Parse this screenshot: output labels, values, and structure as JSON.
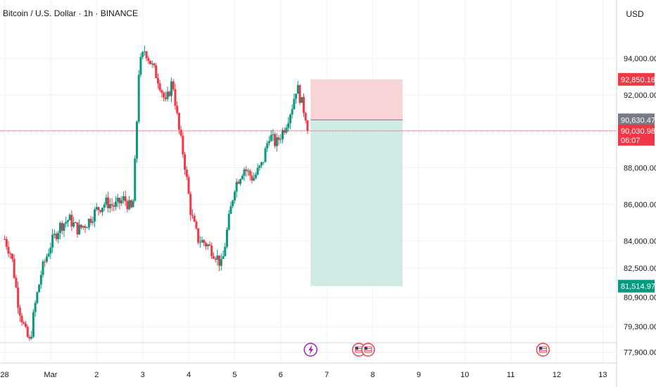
{
  "header": {
    "title": "Bitcoin / U.S. Dollar · 1h · BINANCE",
    "currency": "USD"
  },
  "colors": {
    "up": "#089981",
    "down": "#f23645",
    "grid": "#eef0f3",
    "axis_text": "#131722",
    "risk_zone": "#f9d4d7",
    "reward_zone": "#d0ebe5",
    "current_price_line": "#f23645",
    "entry_badge": "#787b86",
    "stop_badge": "#f23645",
    "target_badge": "#089981",
    "event_us": "#e0464e",
    "event_flash": "#9c27b0"
  },
  "chart_data": {
    "type": "candlestick",
    "interval": "1h",
    "x_tick_labels": [
      "28",
      "Mar",
      "2",
      "3",
      "4",
      "5",
      "6",
      "7",
      "8",
      "9",
      "10",
      "11",
      "12",
      "13"
    ],
    "y_tick_labels": [
      "94,000.00",
      "92,000.00",
      "88,000.00",
      "86,000.00",
      "84,000.00",
      "82,500.00",
      "80,900.00",
      "79,300.00",
      "77,900.00"
    ],
    "y_ticks": [
      94000,
      92000,
      88000,
      86000,
      84000,
      82500,
      80900,
      79300,
      77900
    ],
    "ylim": [
      77300,
      97200
    ],
    "xlim": [
      -0.1,
      13.3
    ],
    "price_badges": [
      {
        "label": "92,850.16",
        "value": 92850.16,
        "role": "stop"
      },
      {
        "label": "90,630.47",
        "value": 90630.47,
        "role": "entry"
      },
      {
        "label": "90,030.98",
        "value": 90030.98,
        "role": "last",
        "countdown": "06:07"
      },
      {
        "label": "81,514.97",
        "value": 81514.97,
        "role": "target"
      }
    ],
    "position_tool": {
      "type": "short",
      "x_start": 6.65,
      "x_end": 8.65,
      "entry": 90630.47,
      "stop": 92850.16,
      "target": 81514.97
    },
    "price_path": [
      {
        "x": 0.0,
        "y": 84100
      },
      {
        "x": 0.15,
        "y": 83200
      },
      {
        "x": 0.3,
        "y": 80500
      },
      {
        "x": 0.45,
        "y": 79000
      },
      {
        "x": 0.55,
        "y": 78400
      },
      {
        "x": 0.65,
        "y": 80300
      },
      {
        "x": 0.8,
        "y": 82300
      },
      {
        "x": 1.0,
        "y": 83800
      },
      {
        "x": 1.2,
        "y": 84800
      },
      {
        "x": 1.4,
        "y": 85200
      },
      {
        "x": 1.6,
        "y": 84600
      },
      {
        "x": 1.8,
        "y": 85000
      },
      {
        "x": 2.0,
        "y": 85700
      },
      {
        "x": 2.2,
        "y": 86100
      },
      {
        "x": 2.4,
        "y": 85900
      },
      {
        "x": 2.6,
        "y": 86300
      },
      {
        "x": 2.78,
        "y": 85600
      },
      {
        "x": 2.85,
        "y": 89000
      },
      {
        "x": 2.92,
        "y": 93500
      },
      {
        "x": 3.05,
        "y": 94500
      },
      {
        "x": 3.2,
        "y": 93600
      },
      {
        "x": 3.35,
        "y": 92800
      },
      {
        "x": 3.5,
        "y": 91500
      },
      {
        "x": 3.65,
        "y": 92800
      },
      {
        "x": 3.78,
        "y": 90200
      },
      {
        "x": 3.9,
        "y": 88500
      },
      {
        "x": 4.05,
        "y": 85500
      },
      {
        "x": 4.2,
        "y": 84100
      },
      {
        "x": 4.4,
        "y": 83800
      },
      {
        "x": 4.6,
        "y": 83200
      },
      {
        "x": 4.72,
        "y": 82600
      },
      {
        "x": 4.85,
        "y": 84800
      },
      {
        "x": 5.0,
        "y": 87000
      },
      {
        "x": 5.2,
        "y": 88000
      },
      {
        "x": 5.4,
        "y": 87400
      },
      {
        "x": 5.6,
        "y": 88200
      },
      {
        "x": 5.75,
        "y": 89800
      },
      {
        "x": 5.9,
        "y": 89300
      },
      {
        "x": 6.1,
        "y": 90300
      },
      {
        "x": 6.25,
        "y": 91400
      },
      {
        "x": 6.35,
        "y": 92500
      },
      {
        "x": 6.45,
        "y": 91600
      },
      {
        "x": 6.55,
        "y": 90800
      },
      {
        "x": 6.62,
        "y": 90030.98
      }
    ],
    "events": [
      {
        "x": 6.65,
        "kind": "flash"
      },
      {
        "x": 7.7,
        "kind": "us"
      },
      {
        "x": 7.9,
        "kind": "us"
      },
      {
        "x": 11.7,
        "kind": "us"
      }
    ]
  }
}
